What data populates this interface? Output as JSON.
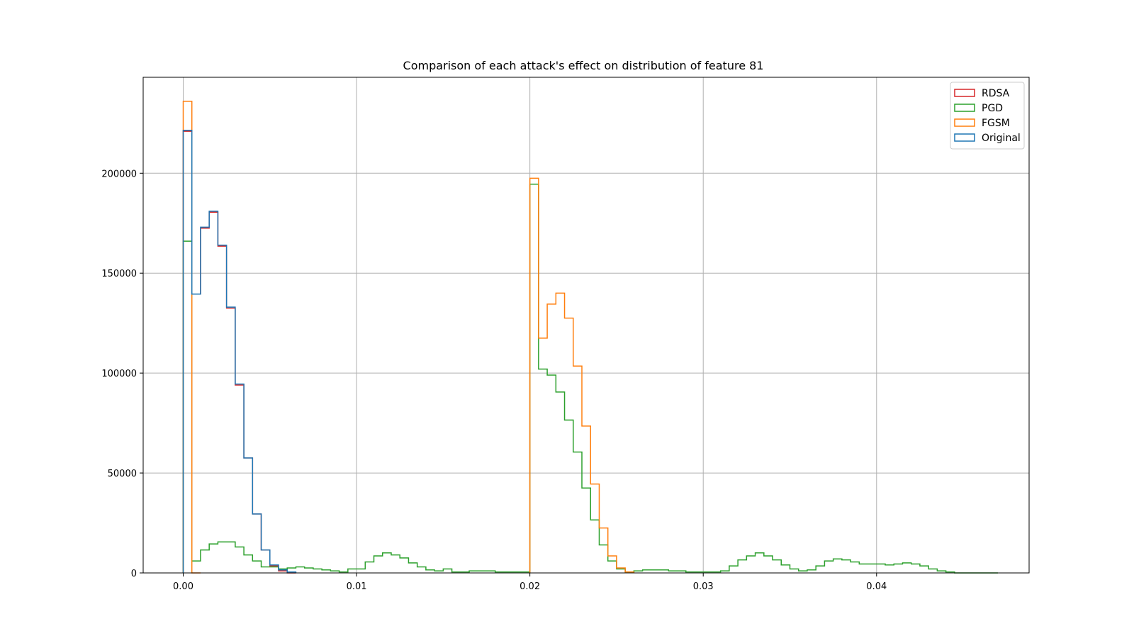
{
  "chart_data": {
    "type": "histogram",
    "title": "Comparison of each attack's effect on distribution of feature 81",
    "xlabel": "",
    "ylabel": "",
    "xlim": [
      -0.00231,
      0.0488
    ],
    "ylim": [
      0,
      248000
    ],
    "xticks": [
      0.0,
      0.01,
      0.02,
      0.03,
      0.04
    ],
    "xtick_labels": [
      "0.00",
      "0.01",
      "0.02",
      "0.03",
      "0.04"
    ],
    "yticks": [
      0,
      50000,
      100000,
      150000,
      200000
    ],
    "ytick_labels": [
      "0",
      "50000",
      "100000",
      "150000",
      "200000"
    ],
    "grid": true,
    "legend_position": "top-right",
    "histtype": "step",
    "series": [
      {
        "name": "RDSA",
        "color": "#d62728",
        "x": [
          0.0,
          0.0005,
          0.001,
          0.0015,
          0.002,
          0.0025,
          0.003,
          0.0035,
          0.004,
          0.0045,
          0.005,
          0.0055,
          0.006
        ],
        "values": [
          221000,
          139500,
          172500,
          180500,
          163500,
          132500,
          94000,
          57500,
          29500,
          11500,
          3500,
          1000,
          0
        ]
      },
      {
        "name": "PGD",
        "color": "#2ca02c",
        "x": [
          0.0,
          0.0005,
          0.001,
          0.0015,
          0.002,
          0.0025,
          0.003,
          0.0035,
          0.004,
          0.0045,
          0.005,
          0.0055,
          0.006,
          0.0065,
          0.007,
          0.0075,
          0.008,
          0.0085,
          0.009,
          0.0095,
          0.01,
          0.0105,
          0.011,
          0.0115,
          0.012,
          0.0125,
          0.013,
          0.0135,
          0.014,
          0.0145,
          0.015,
          0.0155,
          0.016,
          0.0165,
          0.017,
          0.0175,
          0.018,
          0.0185,
          0.019,
          0.0195,
          0.02,
          0.0205,
          0.021,
          0.0215,
          0.022,
          0.0225,
          0.023,
          0.0235,
          0.024,
          0.0245,
          0.025,
          0.0255,
          0.026,
          0.0265,
          0.027,
          0.0275,
          0.028,
          0.0285,
          0.029,
          0.0295,
          0.03,
          0.0305,
          0.031,
          0.0315,
          0.032,
          0.0325,
          0.033,
          0.0335,
          0.034,
          0.0345,
          0.035,
          0.0355,
          0.036,
          0.0365,
          0.037,
          0.0375,
          0.038,
          0.0385,
          0.039,
          0.0395,
          0.04,
          0.0405,
          0.041,
          0.0415,
          0.042,
          0.0425,
          0.043,
          0.0435,
          0.044,
          0.0445,
          0.045,
          0.0455,
          0.046,
          0.0465
        ],
        "values": [
          166000,
          6000,
          11500,
          14500,
          15500,
          15500,
          13000,
          9000,
          6000,
          3000,
          3000,
          2000,
          2500,
          3000,
          2500,
          2000,
          1500,
          1000,
          500,
          2000,
          2000,
          5500,
          8500,
          10000,
          9000,
          7500,
          5000,
          3000,
          1500,
          1000,
          2000,
          500,
          500,
          1000,
          1000,
          1000,
          500,
          500,
          500,
          500,
          194500,
          102000,
          99000,
          90500,
          76500,
          60500,
          42500,
          26500,
          14000,
          6000,
          2000,
          500,
          1000,
          1500,
          1500,
          1500,
          1000,
          1000,
          500,
          500,
          500,
          500,
          1000,
          3500,
          6500,
          8500,
          10000,
          8500,
          6500,
          4000,
          2000,
          1000,
          1500,
          3500,
          6000,
          7000,
          6500,
          5500,
          4500,
          4500,
          4500,
          4000,
          4500,
          5000,
          4500,
          3500,
          2000,
          1000,
          500,
          0,
          0,
          0,
          0,
          0
        ]
      },
      {
        "name": "FGSM",
        "color": "#ff7f0e",
        "x": [
          0.0,
          0.0005,
          0.02,
          0.0205,
          0.021,
          0.0215,
          0.022,
          0.0225,
          0.023,
          0.0235,
          0.024,
          0.0245,
          0.025,
          0.0255
        ],
        "values": [
          236000,
          0,
          197500,
          117500,
          134500,
          140000,
          127500,
          103500,
          73500,
          44500,
          22500,
          8500,
          2500,
          500
        ]
      },
      {
        "name": "Original",
        "color": "#1f77b4",
        "x": [
          0.0,
          0.0005,
          0.001,
          0.0015,
          0.002,
          0.0025,
          0.003,
          0.0035,
          0.004,
          0.0045,
          0.005,
          0.0055,
          0.006
        ],
        "values": [
          221500,
          139500,
          173000,
          181000,
          164000,
          133000,
          94500,
          57500,
          29500,
          11500,
          4000,
          1500,
          500
        ]
      }
    ]
  }
}
